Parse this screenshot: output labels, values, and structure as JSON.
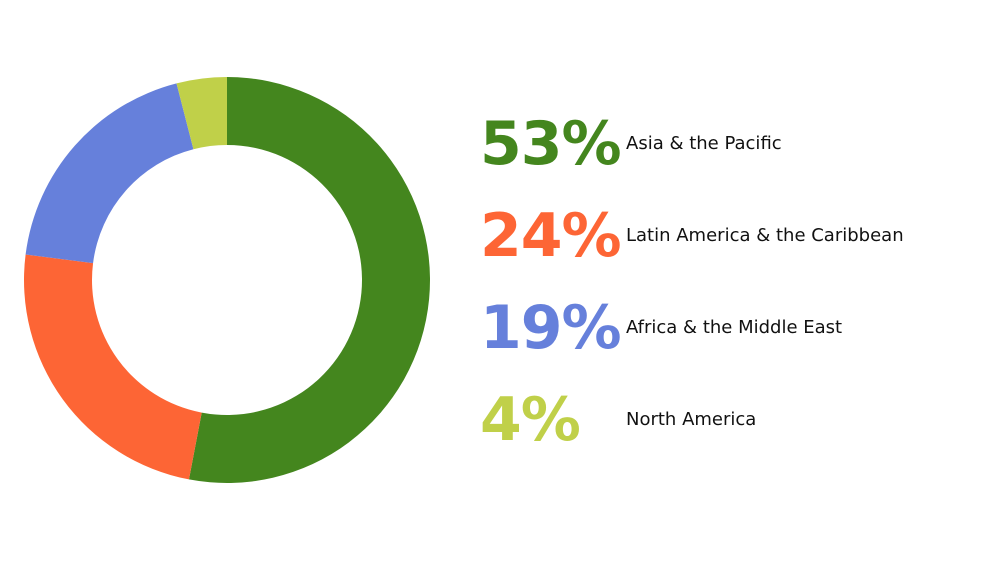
{
  "chart_data": {
    "type": "pie",
    "donut": true,
    "categories": [
      "Asia & the Pacific",
      "Latin America & the Caribbean",
      "Africa & the Middle East",
      "North America"
    ],
    "values": [
      53,
      24,
      19,
      4
    ],
    "value_labels": [
      "53%",
      "24%",
      "19%",
      "4%"
    ],
    "colors": [
      "#44861e",
      "#fd6535",
      "#6680db",
      "#c0d049"
    ],
    "start_angle_deg": 0,
    "direction": "clockwise",
    "legend_placement": "right"
  }
}
